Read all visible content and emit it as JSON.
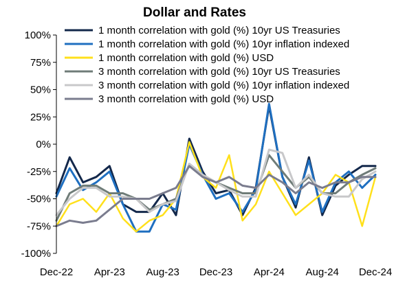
{
  "chart_data": {
    "type": "line",
    "title": "Dollar and Rates",
    "xlabel": "",
    "ylabel": "",
    "ylim": [
      -100,
      100
    ],
    "y_ticks": [
      100,
      75,
      50,
      25,
      0,
      -25,
      -50,
      -75,
      -100
    ],
    "y_tick_labels": [
      "100%",
      "75%",
      "50%",
      "25%",
      "0%",
      "-25%",
      "-50%",
      "-75%",
      "-100%"
    ],
    "x_tick_labels": [
      "Dec-22",
      "Apr-23",
      "Aug-23",
      "Dec-23",
      "Apr-24",
      "Aug-24",
      "Dec-24"
    ],
    "x": [
      "Dec-22",
      "Jan-23",
      "Feb-23",
      "Mar-23",
      "Apr-23",
      "May-23",
      "Jun-23",
      "Jul-23",
      "Aug-23",
      "Sep-23",
      "Oct-23",
      "Nov-23",
      "Dec-23",
      "Jan-24",
      "Feb-24",
      "Mar-24",
      "Apr-24",
      "May-24",
      "Jun-24",
      "Jul-24",
      "Aug-24",
      "Sep-24",
      "Oct-24",
      "Nov-24",
      "Dec-24"
    ],
    "grid": false,
    "legend_position": "top",
    "series": [
      {
        "name": "1 month correlation with gold (%) 10yr US Treasuries",
        "color": "#13284b",
        "width": 3,
        "values": [
          -45,
          -12,
          -35,
          -30,
          -20,
          -55,
          -62,
          -62,
          -45,
          -65,
          5,
          -25,
          -45,
          -42,
          -65,
          -40,
          35,
          -30,
          -58,
          -12,
          -65,
          -38,
          -28,
          -20,
          -20
        ]
      },
      {
        "name": "1 month correlation with gold (%) 10yr inflation indexed",
        "color": "#1f6fc0",
        "width": 3,
        "values": [
          -48,
          -22,
          -42,
          -35,
          -25,
          -55,
          -80,
          -80,
          -55,
          -60,
          0,
          -28,
          -50,
          -45,
          -62,
          -42,
          37,
          -30,
          -55,
          -15,
          -62,
          -35,
          -25,
          -40,
          -28
        ]
      },
      {
        "name": "1 month correlation with gold (%) USD",
        "color": "#ffe01b",
        "width": 2.5,
        "values": [
          -75,
          -55,
          -50,
          -62,
          -45,
          -68,
          -80,
          -70,
          -65,
          -50,
          2,
          -30,
          -40,
          -10,
          -70,
          -55,
          -25,
          -45,
          -65,
          -55,
          -45,
          -28,
          -35,
          -75,
          -30
        ]
      },
      {
        "name": "3 month correlation with gold (%) 10yr US Treasuries",
        "color": "#6f7c78",
        "width": 3,
        "values": [
          -70,
          -45,
          -38,
          -38,
          -45,
          -45,
          -50,
          -60,
          -55,
          -50,
          -18,
          -28,
          -35,
          -40,
          -45,
          -45,
          -10,
          -25,
          -40,
          -30,
          -45,
          -45,
          -35,
          -28,
          -22
        ]
      },
      {
        "name": "3 month correlation with gold (%) 10yr inflation indexed",
        "color": "#c8c8ca",
        "width": 3,
        "values": [
          -65,
          -50,
          -40,
          -40,
          -48,
          -48,
          -50,
          -62,
          -55,
          -52,
          -18,
          -28,
          -35,
          -42,
          -48,
          -48,
          -5,
          -8,
          -40,
          -28,
          -45,
          -48,
          -48,
          -32,
          -25
        ]
      },
      {
        "name": "3 month correlation with gold (%) USD",
        "color": "#7a7c8e",
        "width": 3,
        "values": [
          -75,
          -70,
          -72,
          -70,
          -60,
          -50,
          -50,
          -50,
          -45,
          -40,
          -20,
          -30,
          -35,
          -30,
          -38,
          -40,
          -28,
          -35,
          -45,
          -35,
          -40,
          -35,
          -35,
          -30,
          -30
        ]
      }
    ]
  }
}
